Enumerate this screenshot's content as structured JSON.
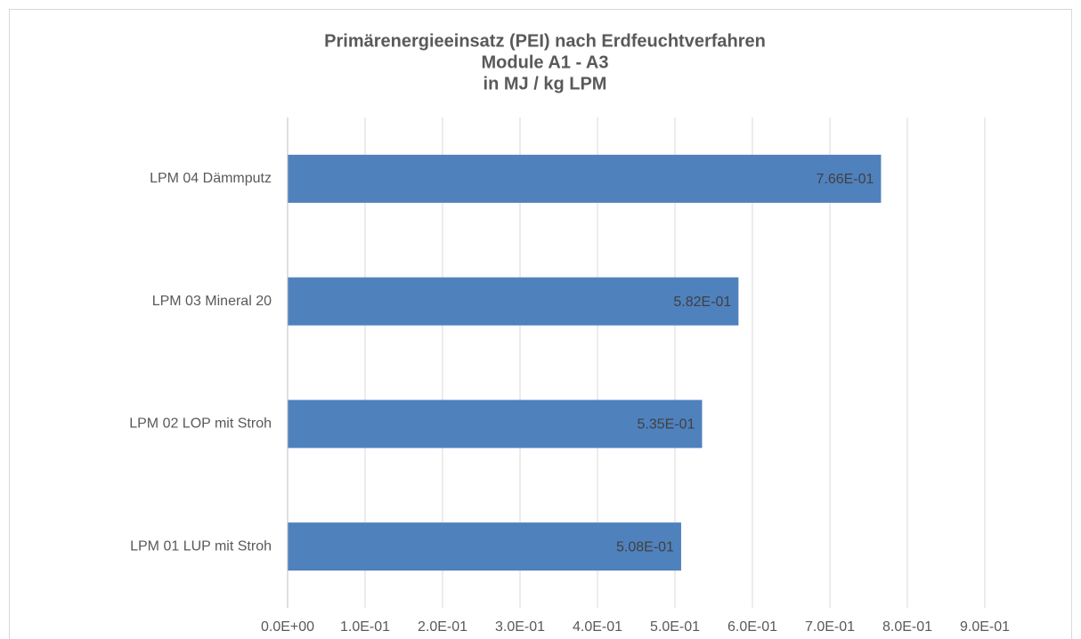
{
  "chart_data": {
    "type": "bar",
    "orientation": "horizontal",
    "title": [
      "Primärenergieeinsatz (PEI) nach Erdfeuchtverfahren",
      "Module A1 - A3",
      "in MJ / kg LPM"
    ],
    "categories": [
      "LPM 04 Dämmputz",
      "LPM 03 Mineral 20",
      "LPM 02 LOP mit Stroh",
      "LPM 01 LUP mit Stroh"
    ],
    "values": [
      0.766,
      0.582,
      0.535,
      0.508
    ],
    "value_labels": [
      "7.66E-01",
      "5.82E-01",
      "5.35E-01",
      "5.08E-01"
    ],
    "color": "#4f81bd",
    "xlim": [
      0,
      0.9
    ],
    "xticks": [
      {
        "value": 0,
        "label": "0.0E+00"
      },
      {
        "value": 0.1,
        "label": "1.0E-01"
      },
      {
        "value": 0.2,
        "label": "2.0E-01"
      },
      {
        "value": 0.3,
        "label": "3.0E-01"
      },
      {
        "value": 0.4,
        "label": "4.0E-01"
      },
      {
        "value": 0.5,
        "label": "5.0E-01"
      },
      {
        "value": 0.6,
        "label": "6.0E-01"
      },
      {
        "value": 0.7,
        "label": "7.0E-01"
      },
      {
        "value": 0.8,
        "label": "8.0E-01"
      },
      {
        "value": 0.9,
        "label": "9.0E-01"
      }
    ],
    "grid": true
  }
}
